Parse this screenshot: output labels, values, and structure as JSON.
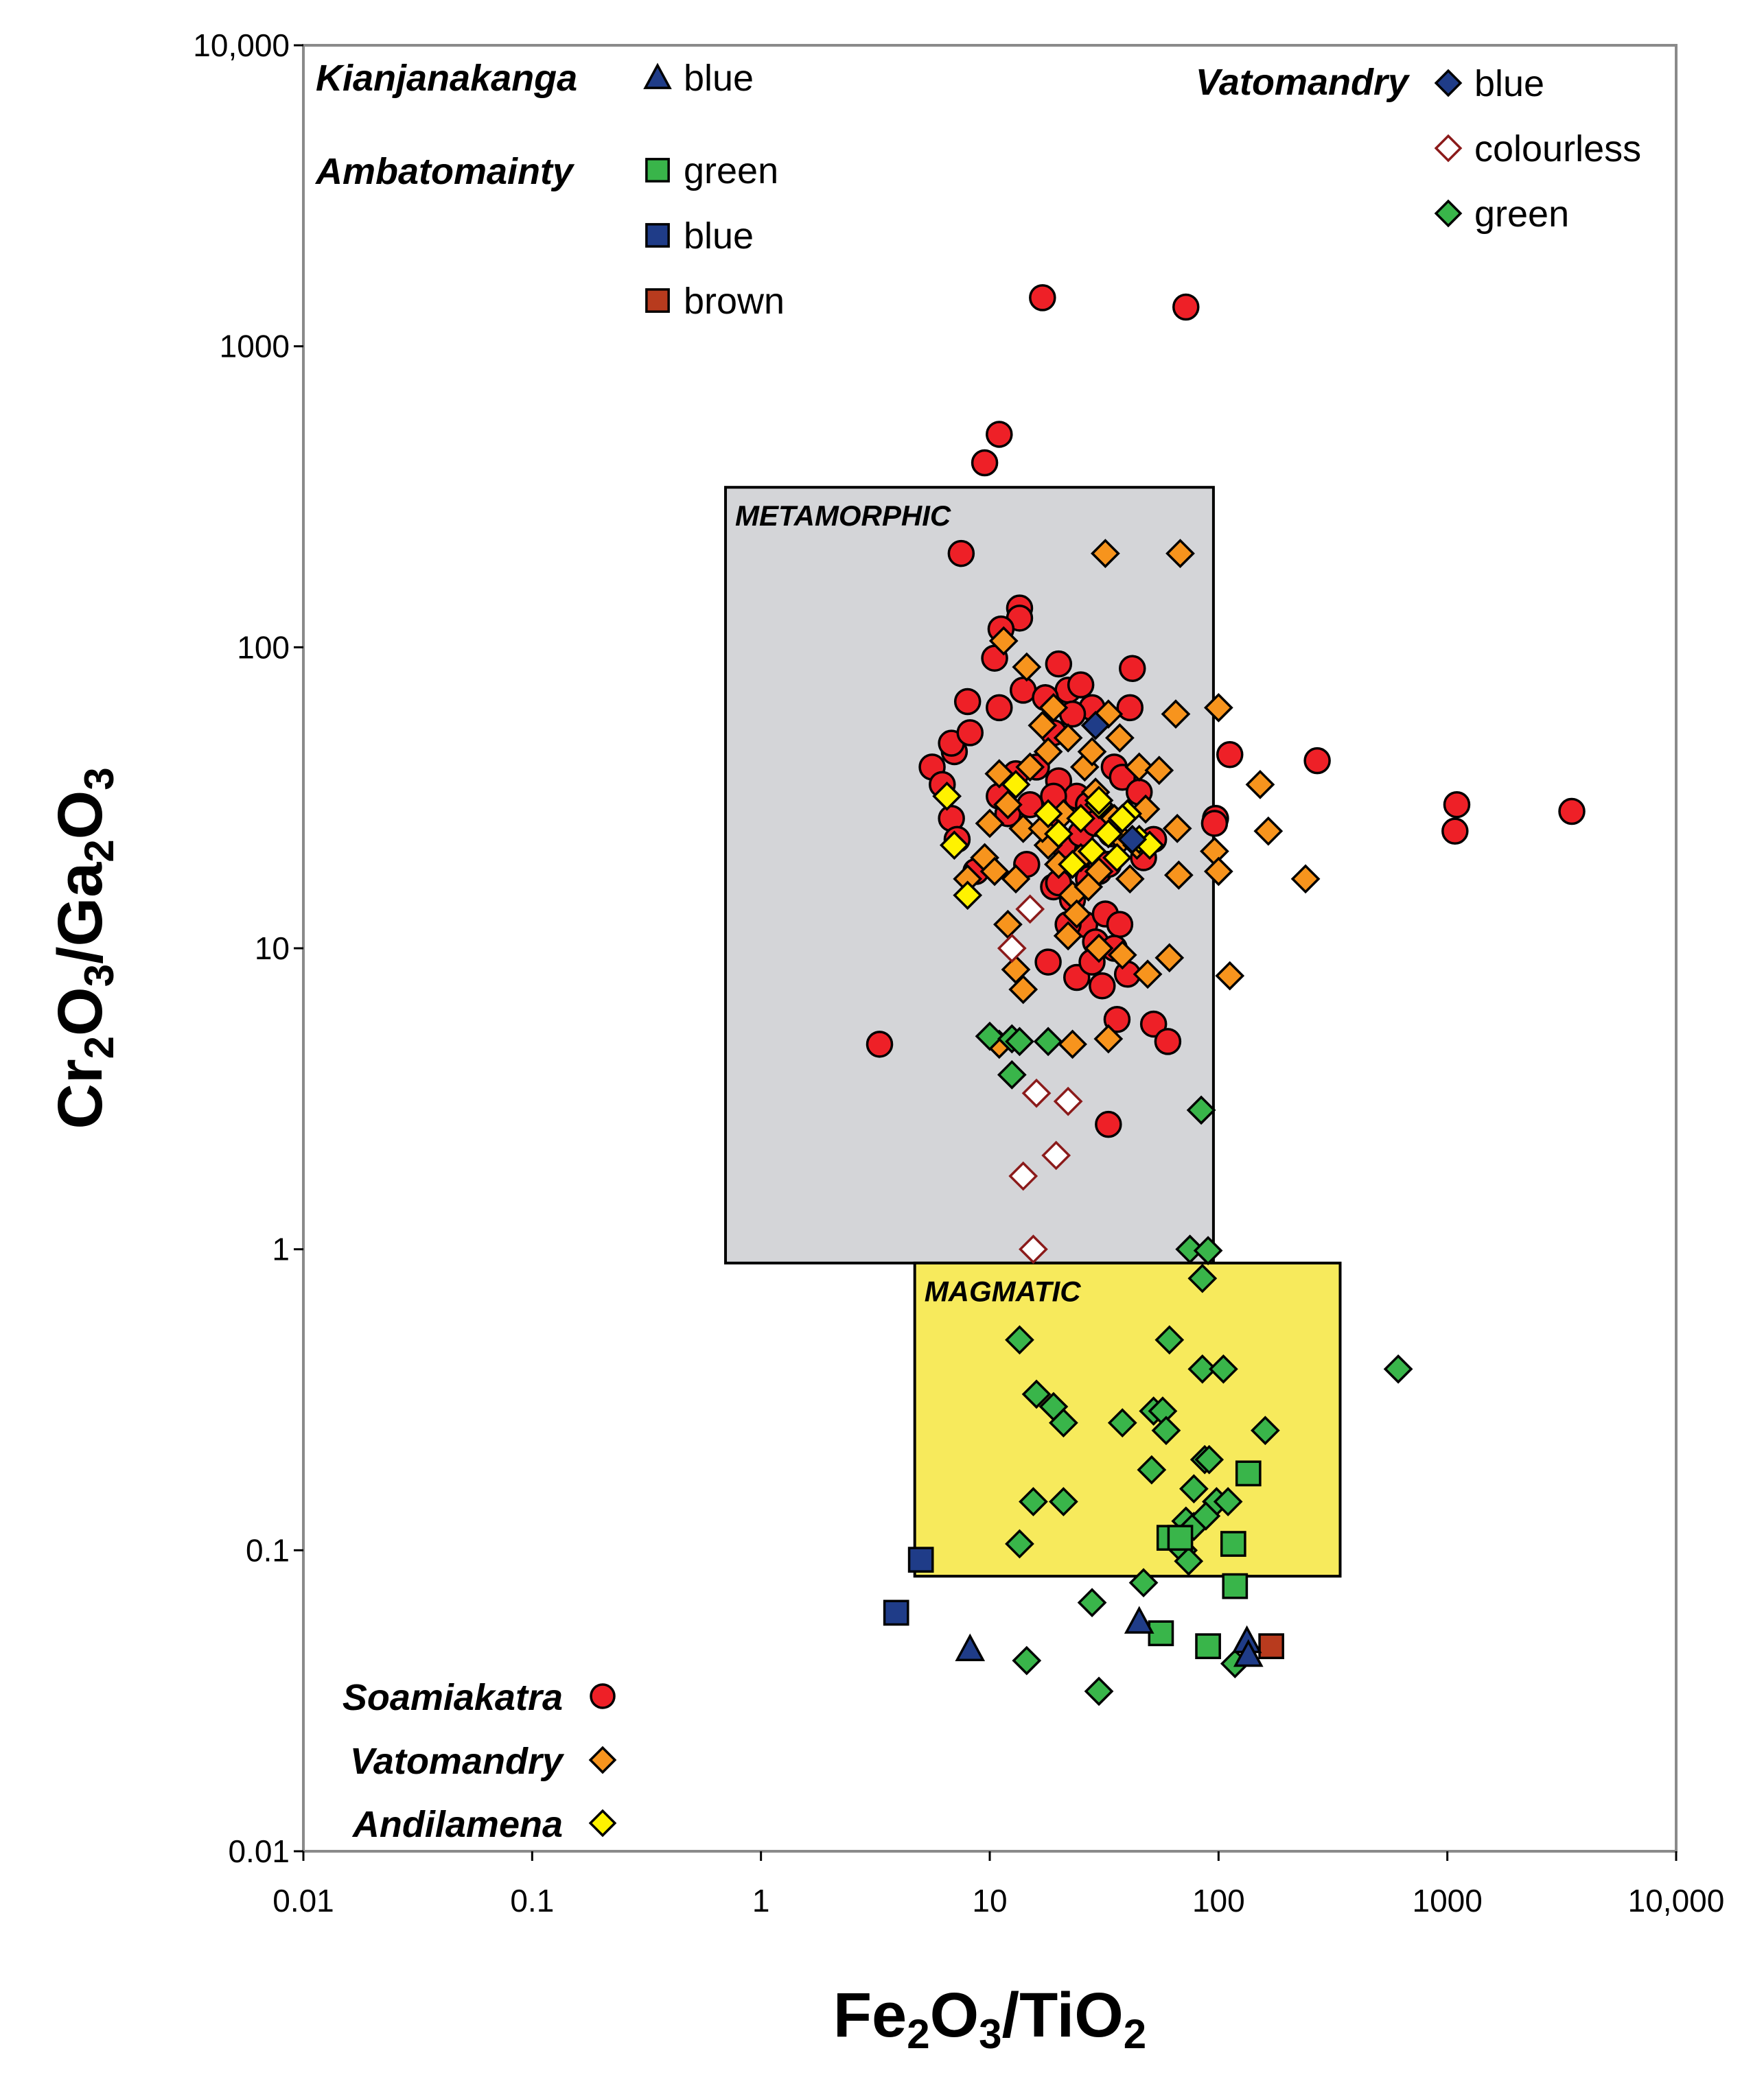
{
  "chart_data": {
    "type": "scatter",
    "xscale": "log",
    "yscale": "log",
    "xlim": [
      0.01,
      10000
    ],
    "ylim": [
      0.01,
      10000
    ],
    "x_tick_values": [
      0.01,
      0.1,
      1,
      10,
      100,
      1000,
      10000
    ],
    "x_tick_labels": [
      "0.01",
      "0.1",
      "1",
      "10",
      "100",
      "1000",
      "10,000"
    ],
    "y_tick_values": [
      0.01,
      0.1,
      1,
      10,
      100,
      1000,
      10000
    ],
    "y_tick_labels": [
      "0.01",
      "0.1",
      "1",
      "10",
      "100",
      "1000",
      "10,000"
    ],
    "xlabel": {
      "parts": [
        {
          "t": "Fe"
        },
        {
          "t": "2",
          "sub": true
        },
        {
          "t": "O"
        },
        {
          "t": "3",
          "sub": true
        },
        {
          "t": "/TiO"
        },
        {
          "t": "2",
          "sub": true
        }
      ]
    },
    "ylabel": {
      "parts": [
        {
          "t": "Cr"
        },
        {
          "t": "2",
          "sub": true
        },
        {
          "t": "O"
        },
        {
          "t": "3",
          "sub": true
        },
        {
          "t": "/Ga"
        },
        {
          "t": "2",
          "sub": true
        },
        {
          "t": "O"
        },
        {
          "t": "3",
          "sub": true
        }
      ]
    },
    "regions": [
      {
        "name": "METAMORPHIC",
        "x": [
          0.7,
          95
        ],
        "y": [
          0.9,
          340
        ],
        "fill": "#d4d5d8"
      },
      {
        "name": "MAGMATIC",
        "x": [
          4.7,
          340
        ],
        "y": [
          0.082,
          0.9
        ],
        "fill": "#f7ea5c"
      }
    ],
    "legend_groups": [
      {
        "title": "Kianjanakanga",
        "position": "top-left",
        "entries": [
          {
            "label": "blue",
            "series": "kianjanakanga_blue"
          }
        ]
      },
      {
        "title": "Ambatomainty",
        "position": "top-left",
        "entries": [
          {
            "label": "green",
            "series": "ambatomainty_green"
          },
          {
            "label": "blue",
            "series": "ambatomainty_blue"
          },
          {
            "label": "brown",
            "series": "ambatomainty_brown"
          }
        ]
      },
      {
        "title": "Vatomandry",
        "position": "top-right",
        "entries": [
          {
            "label": "blue",
            "series": "vatomandry_blue"
          },
          {
            "label": "colourless",
            "series": "vatomandry_colourless"
          },
          {
            "label": "green",
            "series": "vatomandry_green"
          }
        ]
      },
      {
        "title": "Soamiakatra",
        "position": "bottom-left",
        "entries": [
          {
            "label": "",
            "series": "soamiakatra"
          }
        ]
      },
      {
        "title": "Vatomandry",
        "position": "bottom-left",
        "entries": [
          {
            "label": "",
            "series": "vatomandry"
          }
        ]
      },
      {
        "title": "Andilamena",
        "position": "bottom-left",
        "entries": [
          {
            "label": "",
            "series": "andilamena"
          }
        ]
      }
    ],
    "series": [
      {
        "name": "soamiakatra",
        "marker": "circle",
        "fill": "#ee2027",
        "points": [
          [
            17,
            1450
          ],
          [
            72,
            1350
          ],
          [
            11,
            510
          ],
          [
            9.5,
            410
          ],
          [
            7.5,
            205
          ],
          [
            13.5,
            135
          ],
          [
            13.5,
            125
          ],
          [
            11.2,
            115
          ],
          [
            20,
            88
          ],
          [
            22,
            72
          ],
          [
            25,
            75
          ],
          [
            42,
            85
          ],
          [
            14,
            72
          ],
          [
            8,
            66
          ],
          [
            11,
            63
          ],
          [
            28,
            63
          ],
          [
            19,
            52
          ],
          [
            41,
            63
          ],
          [
            10.5,
            92
          ],
          [
            17.5,
            68
          ],
          [
            23,
            60
          ],
          [
            35,
            40
          ],
          [
            7,
            45
          ],
          [
            6.8,
            48
          ],
          [
            8.2,
            52
          ],
          [
            5.6,
            40
          ],
          [
            6.2,
            35
          ],
          [
            6.8,
            27
          ],
          [
            7.2,
            23
          ],
          [
            8.7,
            18
          ],
          [
            13,
            38
          ],
          [
            16,
            40
          ],
          [
            20,
            36
          ],
          [
            24,
            32
          ],
          [
            38,
            37
          ],
          [
            45,
            33
          ],
          [
            12,
            28
          ],
          [
            15,
            30
          ],
          [
            18,
            25
          ],
          [
            21,
            22
          ],
          [
            26,
            20
          ],
          [
            30,
            18
          ],
          [
            34,
            24
          ],
          [
            47,
            20
          ],
          [
            52,
            23
          ],
          [
            11,
            32
          ],
          [
            14.5,
            19
          ],
          [
            19,
            16
          ],
          [
            23,
            14.5
          ],
          [
            26,
            12
          ],
          [
            29,
            10.5
          ],
          [
            32,
            13
          ],
          [
            37,
            12
          ],
          [
            24,
            8
          ],
          [
            28,
            9
          ],
          [
            31,
            7.5
          ],
          [
            35,
            10
          ],
          [
            40,
            8.2
          ],
          [
            18,
            9
          ],
          [
            20,
            16.5
          ],
          [
            22,
            12
          ],
          [
            36,
            5.8
          ],
          [
            52,
            5.6
          ],
          [
            60,
            4.9
          ],
          [
            3.3,
            4.8
          ],
          [
            33,
            2.6
          ],
          [
            97,
            27
          ],
          [
            96,
            26
          ],
          [
            112,
            44
          ],
          [
            270,
            42
          ],
          [
            1100,
            30
          ],
          [
            1080,
            24.5
          ],
          [
            3500,
            28.5
          ],
          [
            27,
            17
          ],
          [
            33,
            19
          ],
          [
            25,
            24
          ],
          [
            19,
            32
          ],
          [
            27,
            30
          ],
          [
            29,
            26
          ]
        ]
      },
      {
        "name": "vatomandry",
        "marker": "diamond",
        "fill": "#f7941d",
        "points": [
          [
            32,
            205
          ],
          [
            68,
            205
          ],
          [
            11.5,
            105
          ],
          [
            14.5,
            86
          ],
          [
            17,
            55
          ],
          [
            19,
            63
          ],
          [
            22,
            50
          ],
          [
            26,
            40
          ],
          [
            28,
            45
          ],
          [
            33,
            60
          ],
          [
            37,
            50
          ],
          [
            45,
            40
          ],
          [
            65,
            60
          ],
          [
            100,
            63
          ],
          [
            18,
            45
          ],
          [
            15,
            40
          ],
          [
            11,
            38
          ],
          [
            12,
            30
          ],
          [
            14,
            25
          ],
          [
            10,
            26
          ],
          [
            9.5,
            20
          ],
          [
            10.5,
            18
          ],
          [
            13,
            17
          ],
          [
            12,
            12
          ],
          [
            14,
            7.3
          ],
          [
            13,
            8.5
          ],
          [
            18,
            22
          ],
          [
            20,
            19
          ],
          [
            23,
            15
          ],
          [
            25,
            20
          ],
          [
            27,
            16
          ],
          [
            24,
            13
          ],
          [
            22,
            11
          ],
          [
            30,
            18
          ],
          [
            38,
            23
          ],
          [
            41,
            17
          ],
          [
            48,
            29
          ],
          [
            30,
            10
          ],
          [
            38,
            9.5
          ],
          [
            49,
            8.2
          ],
          [
            61,
            9.3
          ],
          [
            67,
            17.5
          ],
          [
            66,
            25
          ],
          [
            96,
            21
          ],
          [
            100,
            18
          ],
          [
            112,
            8.1
          ],
          [
            152,
            35
          ],
          [
            165,
            24.5
          ],
          [
            240,
            17
          ],
          [
            33,
            5
          ],
          [
            23,
            4.8
          ],
          [
            11,
            4.8
          ],
          [
            17,
            25
          ],
          [
            21,
            28
          ],
          [
            29,
            33
          ],
          [
            35,
            27
          ],
          [
            44,
            22
          ],
          [
            55,
            39
          ],
          [
            8,
            17
          ]
        ]
      },
      {
        "name": "andilamena",
        "marker": "diamond",
        "fill": "#fff200",
        "points": [
          [
            6.5,
            32
          ],
          [
            7,
            22
          ],
          [
            8,
            15
          ],
          [
            13,
            35
          ],
          [
            18,
            28
          ],
          [
            20,
            24
          ],
          [
            25,
            27
          ],
          [
            28,
            21
          ],
          [
            30,
            30
          ],
          [
            33,
            24
          ],
          [
            36,
            20
          ],
          [
            40,
            28
          ],
          [
            45,
            23
          ],
          [
            50,
            22
          ],
          [
            23,
            19
          ],
          [
            30,
            31
          ],
          [
            38,
            27
          ]
        ]
      },
      {
        "name": "vatomandry_blue",
        "marker": "diamond",
        "fill": "#1f3c88",
        "points": [
          [
            29,
            55
          ],
          [
            42,
            23
          ]
        ]
      },
      {
        "name": "vatomandry_colourless",
        "marker": "diamond",
        "fill": "#ffffff",
        "stroke": "#8b1a1a",
        "points": [
          [
            12.5,
            10
          ],
          [
            15,
            13.5
          ],
          [
            16,
            3.3
          ],
          [
            22,
            3.1
          ],
          [
            19.5,
            2.05
          ],
          [
            14,
            1.75
          ],
          [
            15.5,
            1
          ]
        ]
      },
      {
        "name": "vatomandry_green",
        "marker": "diamond",
        "fill": "#39b54a",
        "points": [
          [
            10,
            5.1
          ],
          [
            12.5,
            5
          ],
          [
            13.5,
            4.9
          ],
          [
            18,
            4.9
          ],
          [
            12.5,
            3.8
          ],
          [
            84,
            2.9
          ],
          [
            75,
            1
          ],
          [
            90,
            0.99
          ],
          [
            85,
            0.8
          ],
          [
            13.5,
            0.5
          ],
          [
            61,
            0.5
          ],
          [
            85,
            0.4
          ],
          [
            105,
            0.4
          ],
          [
            610,
            0.4
          ],
          [
            16,
            0.33
          ],
          [
            19,
            0.3
          ],
          [
            21,
            0.265
          ],
          [
            38,
            0.265
          ],
          [
            52,
            0.29
          ],
          [
            57,
            0.29
          ],
          [
            59,
            0.25
          ],
          [
            160,
            0.25
          ],
          [
            51,
            0.185
          ],
          [
            87,
            0.2
          ],
          [
            91,
            0.2
          ],
          [
            78,
            0.16
          ],
          [
            15.5,
            0.145
          ],
          [
            21,
            0.145
          ],
          [
            98,
            0.145
          ],
          [
            110,
            0.145
          ],
          [
            72,
            0.125
          ],
          [
            78,
            0.12
          ],
          [
            88,
            0.13
          ],
          [
            70,
            0.1
          ],
          [
            13.5,
            0.105
          ],
          [
            74,
            0.092
          ],
          [
            47,
            0.078
          ],
          [
            28,
            0.067
          ],
          [
            14.5,
            0.043
          ],
          [
            30,
            0.034
          ],
          [
            118,
            0.042
          ]
        ]
      },
      {
        "name": "ambatomainty_green",
        "marker": "square",
        "fill": "#39b54a",
        "points": [
          [
            135,
            0.18
          ],
          [
            61,
            0.11
          ],
          [
            116,
            0.105
          ],
          [
            118,
            0.076
          ],
          [
            56,
            0.053
          ],
          [
            90,
            0.048
          ],
          [
            68,
            0.11
          ]
        ]
      },
      {
        "name": "ambatomainty_blue",
        "marker": "square",
        "fill": "#1f3c88",
        "points": [
          [
            5,
            0.093
          ],
          [
            3.9,
            0.062
          ]
        ]
      },
      {
        "name": "ambatomainty_brown",
        "marker": "square",
        "fill": "#b83b1e",
        "points": [
          [
            170,
            0.048
          ]
        ]
      },
      {
        "name": "kianjanakanga_blue",
        "marker": "triangle",
        "fill": "#1f3c88",
        "points": [
          [
            8.2,
            0.047
          ],
          [
            45,
            0.058
          ],
          [
            133,
            0.05
          ],
          [
            135,
            0.045
          ]
        ]
      }
    ]
  }
}
